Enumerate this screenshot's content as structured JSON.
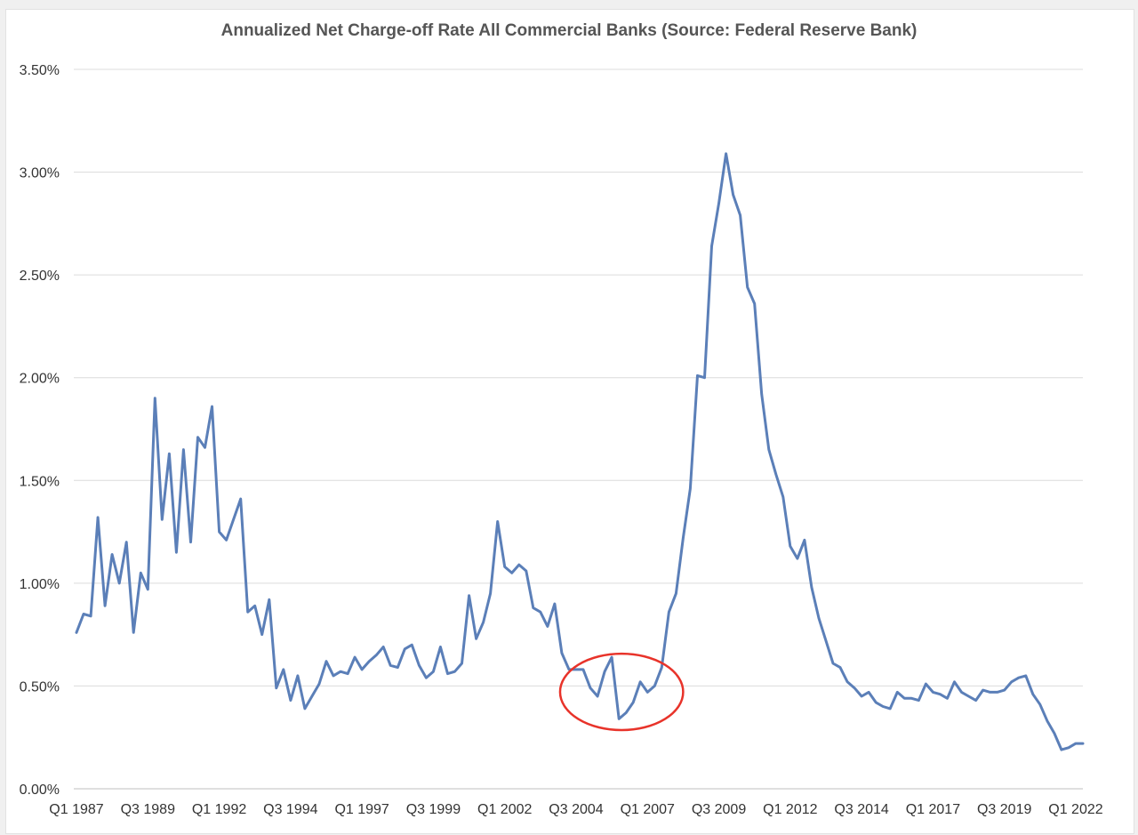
{
  "chart_data": {
    "type": "line",
    "title": "Annualized Net Charge-off Rate All Commercial Banks (Source: Federal Reserve Bank)",
    "xlabel": "",
    "ylabel": "",
    "ylim": [
      0,
      3.5
    ],
    "y_ticks": [
      "0.00%",
      "0.50%",
      "1.00%",
      "1.50%",
      "2.00%",
      "2.50%",
      "3.00%",
      "3.50%"
    ],
    "x_tick_labels": [
      "Q1 1987",
      "Q3 1989",
      "Q1 1992",
      "Q3 1994",
      "Q1 1997",
      "Q3 1999",
      "Q1 2002",
      "Q3 2004",
      "Q1 2007",
      "Q3 2009",
      "Q1 2012",
      "Q3 2014",
      "Q1 2017",
      "Q3 2019",
      "Q1 2022"
    ],
    "grid": true,
    "legend": "none",
    "line_color": "#5b7fb8",
    "annotation": {
      "shape": "ellipse",
      "color": "#e8332a",
      "x_range": [
        "Q2 2004",
        "Q1 2008"
      ],
      "y_range_percent": [
        0.32,
        0.67
      ]
    },
    "series": [
      {
        "values": [
          0.76,
          0.85,
          0.84,
          1.32,
          0.89,
          1.14,
          1.0,
          1.2,
          0.76,
          1.05,
          0.97,
          1.9,
          1.31,
          1.63,
          1.15,
          1.65,
          1.2,
          1.71,
          1.66,
          1.86,
          1.25,
          1.21,
          1.31,
          1.41,
          0.86,
          0.89,
          0.75,
          0.92,
          0.49,
          0.58,
          0.43,
          0.55,
          0.39,
          0.45,
          0.51,
          0.62,
          0.55,
          0.57,
          0.56,
          0.64,
          0.58,
          0.62,
          0.65,
          0.69,
          0.6,
          0.59,
          0.68,
          0.7,
          0.6,
          0.54,
          0.57,
          0.69,
          0.56,
          0.57,
          0.61,
          0.94,
          0.73,
          0.81,
          0.95,
          1.3,
          1.08,
          1.05,
          1.09,
          1.06,
          0.88,
          0.86,
          0.79,
          0.9,
          0.66,
          0.58,
          0.58,
          0.58,
          0.49,
          0.45,
          0.57,
          0.64,
          0.34,
          0.37,
          0.42,
          0.52,
          0.47,
          0.5,
          0.59,
          0.86,
          0.95,
          1.22,
          1.46,
          2.01,
          2.0,
          2.64,
          2.85,
          3.09,
          2.89,
          2.79,
          2.44,
          2.36,
          1.92,
          1.65,
          1.53,
          1.42,
          1.18,
          1.12,
          1.21,
          0.98,
          0.83,
          0.72,
          0.61,
          0.59,
          0.52,
          0.49,
          0.45,
          0.47,
          0.42,
          0.4,
          0.39,
          0.47,
          0.44,
          0.44,
          0.43,
          0.51,
          0.47,
          0.46,
          0.44,
          0.52,
          0.47,
          0.45,
          0.43,
          0.48,
          0.47,
          0.47,
          0.48,
          0.52,
          0.54,
          0.55,
          0.46,
          0.41,
          0.33,
          0.27,
          0.19,
          0.2,
          0.22,
          0.22
        ]
      }
    ]
  }
}
